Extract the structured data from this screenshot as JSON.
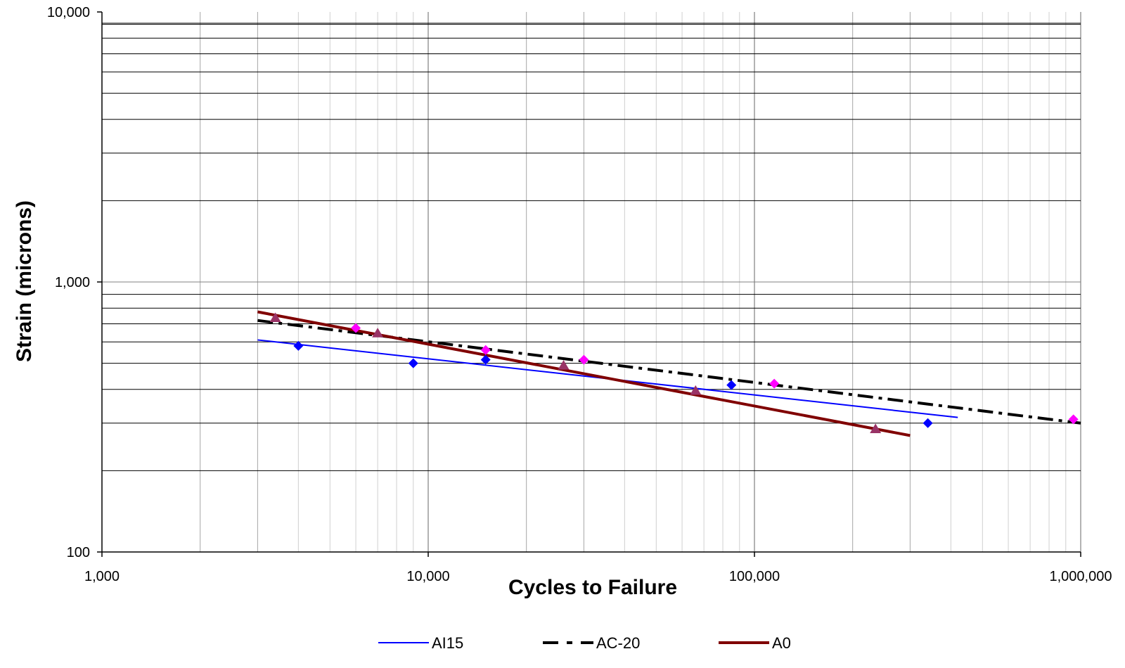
{
  "chart_data": {
    "type": "scatter",
    "title": "",
    "xlabel": "Cycles to Failure",
    "ylabel": "Strain (microns)",
    "x_scale": "log",
    "y_scale": "log",
    "xlim": [
      1000,
      1000000
    ],
    "ylim": [
      100,
      10000
    ],
    "x_ticks": [
      {
        "value": 1000,
        "label": "1,000"
      },
      {
        "value": 10000,
        "label": "10,000"
      },
      {
        "value": 100000,
        "label": "100,000"
      },
      {
        "value": 1000000,
        "label": "1,000,000"
      }
    ],
    "y_ticks": [
      {
        "value": 100,
        "label": "100"
      },
      {
        "value": 1000,
        "label": "1,000"
      },
      {
        "value": 10000,
        "label": "10,000"
      }
    ],
    "grid": true,
    "legend_position": "bottom",
    "series": [
      {
        "name": "AI15",
        "color": "#0000ff",
        "marker": "diamond",
        "line_style": "solid",
        "points": [
          [
            4000,
            580
          ],
          [
            9000,
            500
          ],
          [
            15000,
            515
          ],
          [
            85000,
            415
          ],
          [
            340000,
            300
          ]
        ],
        "trend": [
          [
            3000,
            610
          ],
          [
            420000,
            315
          ]
        ]
      },
      {
        "name": "AC-20",
        "color": "#000000",
        "marker_color": "#ff00ff",
        "marker": "diamond",
        "line_style": "dash-dot",
        "points": [
          [
            6000,
            675
          ],
          [
            15000,
            560
          ],
          [
            30000,
            515
          ],
          [
            115000,
            420
          ],
          [
            950000,
            310
          ]
        ],
        "trend": [
          [
            3000,
            720
          ],
          [
            1000000,
            300
          ]
        ]
      },
      {
        "name": "A0",
        "color": "#800000",
        "marker_color": "#993366",
        "marker": "triangle",
        "line_style": "solid-thick",
        "points": [
          [
            3400,
            735
          ],
          [
            7000,
            645
          ],
          [
            26000,
            490
          ],
          [
            66000,
            395
          ],
          [
            235000,
            285
          ]
        ],
        "trend": [
          [
            3000,
            775
          ],
          [
            300000,
            270
          ]
        ]
      }
    ]
  }
}
